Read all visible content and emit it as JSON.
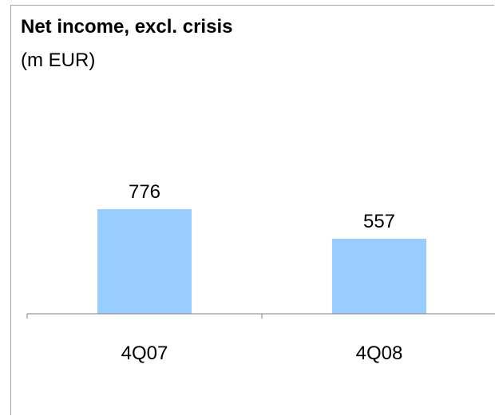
{
  "chart_data": {
    "type": "bar",
    "title": "Net income, excl. crisis",
    "subtitle": "(m EUR)",
    "categories": [
      "4Q07",
      "4Q08"
    ],
    "values": [
      776,
      557
    ],
    "data_labels": [
      "776",
      "557"
    ],
    "xlabel": "",
    "ylabel": "",
    "ylim": [
      0,
      1000
    ],
    "grid": false,
    "legend": "none",
    "bar_color": "#99ccff",
    "axis_color": "#808080"
  }
}
